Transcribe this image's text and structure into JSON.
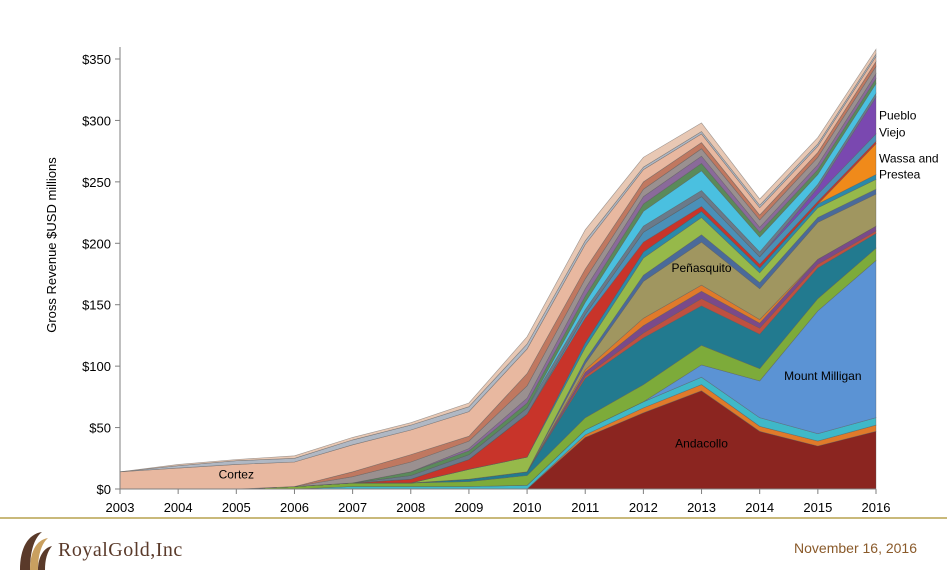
{
  "chart_data": {
    "type": "area",
    "stacked": true,
    "ylabel": "Gross Revenue $USD millions",
    "xlabel": "",
    "x": [
      "2003",
      "2004",
      "2005",
      "2006",
      "2007",
      "2008",
      "2009",
      "2010",
      "2011",
      "2012",
      "2013",
      "2014",
      "2015",
      "2016"
    ],
    "ylim": [
      0,
      350
    ],
    "yticks": [
      "$0",
      "$50",
      "$100",
      "$150",
      "$200",
      "$250",
      "$300",
      "$350"
    ],
    "grid": false,
    "legend": "none",
    "series": [
      {
        "name": "Andacollo",
        "color": "#8b2520",
        "values": [
          0,
          0,
          0,
          0,
          0,
          0,
          0,
          0,
          42,
          62,
          80,
          47,
          35,
          47
        ]
      },
      {
        "name": "",
        "color": "#e07a2a",
        "values": [
          0,
          0,
          0,
          0,
          0,
          0,
          0,
          0,
          2,
          4,
          5,
          4,
          4,
          5
        ]
      },
      {
        "name": "",
        "color": "#3fb8c8",
        "values": [
          0,
          0,
          0,
          0,
          2,
          2,
          2,
          3,
          4,
          5,
          6,
          7,
          6,
          6
        ]
      },
      {
        "name": "Mount Milligan",
        "color": "#5b93d4",
        "values": [
          0,
          0,
          0,
          0,
          0,
          0,
          0,
          0,
          0,
          0,
          10,
          30,
          100,
          128
        ]
      },
      {
        "name": "",
        "color": "#7dab3a",
        "values": [
          0,
          0,
          0,
          2,
          3,
          3,
          4,
          8,
          10,
          14,
          16,
          10,
          10,
          10
        ]
      },
      {
        "name": "",
        "color": "#227a8f",
        "values": [
          0,
          0,
          0,
          0,
          0,
          0,
          2,
          3,
          32,
          38,
          32,
          28,
          25,
          12
        ]
      },
      {
        "name": "",
        "color": "#c05040",
        "values": [
          0,
          0,
          0,
          0,
          0,
          0,
          0,
          0,
          2,
          4,
          6,
          5,
          3,
          2
        ]
      },
      {
        "name": "",
        "color": "#7a4a8a",
        "values": [
          0,
          0,
          0,
          0,
          0,
          0,
          0,
          0,
          3,
          6,
          6,
          4,
          4,
          4
        ]
      },
      {
        "name": "",
        "color": "#e07a2a",
        "values": [
          0,
          0,
          0,
          0,
          0,
          0,
          0,
          0,
          2,
          6,
          5,
          3,
          0,
          0
        ]
      },
      {
        "name": "Peñasquito",
        "color": "#a09660",
        "values": [
          0,
          0,
          0,
          0,
          0,
          0,
          0,
          0,
          5,
          30,
          35,
          25,
          30,
          26
        ]
      },
      {
        "name": "",
        "color": "#4a6a9a",
        "values": [
          0,
          0,
          0,
          0,
          0,
          0,
          0,
          0,
          3,
          5,
          6,
          5,
          4,
          4
        ]
      },
      {
        "name": "",
        "color": "#96b94a",
        "values": [
          0,
          0,
          0,
          0,
          0,
          0,
          8,
          12,
          10,
          14,
          14,
          8,
          8,
          8
        ]
      },
      {
        "name": "",
        "color": "#2a8aaa",
        "values": [
          0,
          0,
          0,
          0,
          0,
          0,
          0,
          0,
          4,
          5,
          5,
          4,
          3,
          4
        ]
      },
      {
        "name": "Wassa and Prestea",
        "color": "#f08a1a",
        "values": [
          0,
          0,
          0,
          0,
          0,
          0,
          0,
          0,
          0,
          0,
          0,
          0,
          0,
          25
        ]
      },
      {
        "name": "",
        "color": "#c8342a",
        "values": [
          0,
          0,
          0,
          0,
          0,
          3,
          8,
          35,
          20,
          8,
          4,
          3,
          2,
          2
        ]
      },
      {
        "name": "",
        "color": "#4a90b8",
        "values": [
          0,
          0,
          0,
          0,
          0,
          0,
          0,
          0,
          3,
          8,
          8,
          6,
          6,
          6
        ]
      },
      {
        "name": "Pueblo Viejo",
        "color": "#7a48b0",
        "values": [
          0,
          0,
          0,
          0,
          0,
          0,
          0,
          0,
          0,
          0,
          0,
          0,
          5,
          30
        ]
      },
      {
        "name": "",
        "color": "#6a7a8a",
        "values": [
          0,
          0,
          0,
          0,
          0,
          3,
          4,
          5,
          4,
          5,
          5,
          4,
          3,
          3
        ]
      },
      {
        "name": "",
        "color": "#4ac0e0",
        "values": [
          0,
          0,
          0,
          0,
          0,
          0,
          0,
          0,
          6,
          12,
          16,
          12,
          8,
          8
        ]
      },
      {
        "name": "",
        "color": "#5a8a5a",
        "values": [
          0,
          0,
          0,
          0,
          0,
          3,
          3,
          4,
          5,
          6,
          6,
          4,
          4,
          4
        ]
      },
      {
        "name": "",
        "color": "#8a6a9a",
        "values": [
          0,
          0,
          0,
          0,
          0,
          0,
          2,
          4,
          6,
          6,
          6,
          4,
          4,
          4
        ]
      },
      {
        "name": "",
        "color": "#9a9090",
        "values": [
          0,
          0,
          0,
          0,
          5,
          8,
          6,
          10,
          8,
          6,
          6,
          6,
          6,
          6
        ]
      },
      {
        "name": "",
        "color": "#c07860",
        "values": [
          0,
          0,
          0,
          0,
          4,
          6,
          4,
          10,
          8,
          6,
          5,
          4,
          4,
          4
        ]
      },
      {
        "name": "Cortez",
        "color": "#e8b8a0",
        "values": [
          14,
          17,
          20,
          20,
          22,
          20,
          20,
          20,
          20,
          10,
          7,
          6,
          5,
          4
        ]
      },
      {
        "name": "",
        "color": "#b0b8c4",
        "values": [
          0,
          2,
          3,
          3,
          4,
          4,
          4,
          4,
          3,
          2,
          2,
          2,
          2,
          2
        ]
      },
      {
        "name": "",
        "color": "#e8c8b4",
        "values": [
          0,
          1,
          1,
          2,
          2,
          2,
          3,
          6,
          9,
          8,
          7,
          5,
          5,
          4
        ]
      }
    ],
    "annotations": [
      {
        "text": "Cortez",
        "x": "2005",
        "y": 12
      },
      {
        "text": "Andacollo",
        "x": "2013",
        "y": 37
      },
      {
        "text": "Mount Milligan",
        "x": "2015",
        "y": 92
      },
      {
        "text": "Peñasquito",
        "x": "2013",
        "y": 180
      },
      {
        "text": "Pueblo",
        "x": "2016",
        "y": 304
      },
      {
        "text": "Viejo",
        "x": "2016",
        "y": 290
      },
      {
        "text": "Wassa and",
        "x": "2016",
        "y": 269
      },
      {
        "text": "Prestea",
        "x": "2016",
        "y": 256
      }
    ]
  },
  "footer": {
    "logo_text": "RoyalGold,Inc",
    "date": "November 16, 2016"
  },
  "colors": {
    "footer_rule": "#c9b97a",
    "date_text": "#8a5a2a",
    "logo_text": "#5a3a2a"
  }
}
